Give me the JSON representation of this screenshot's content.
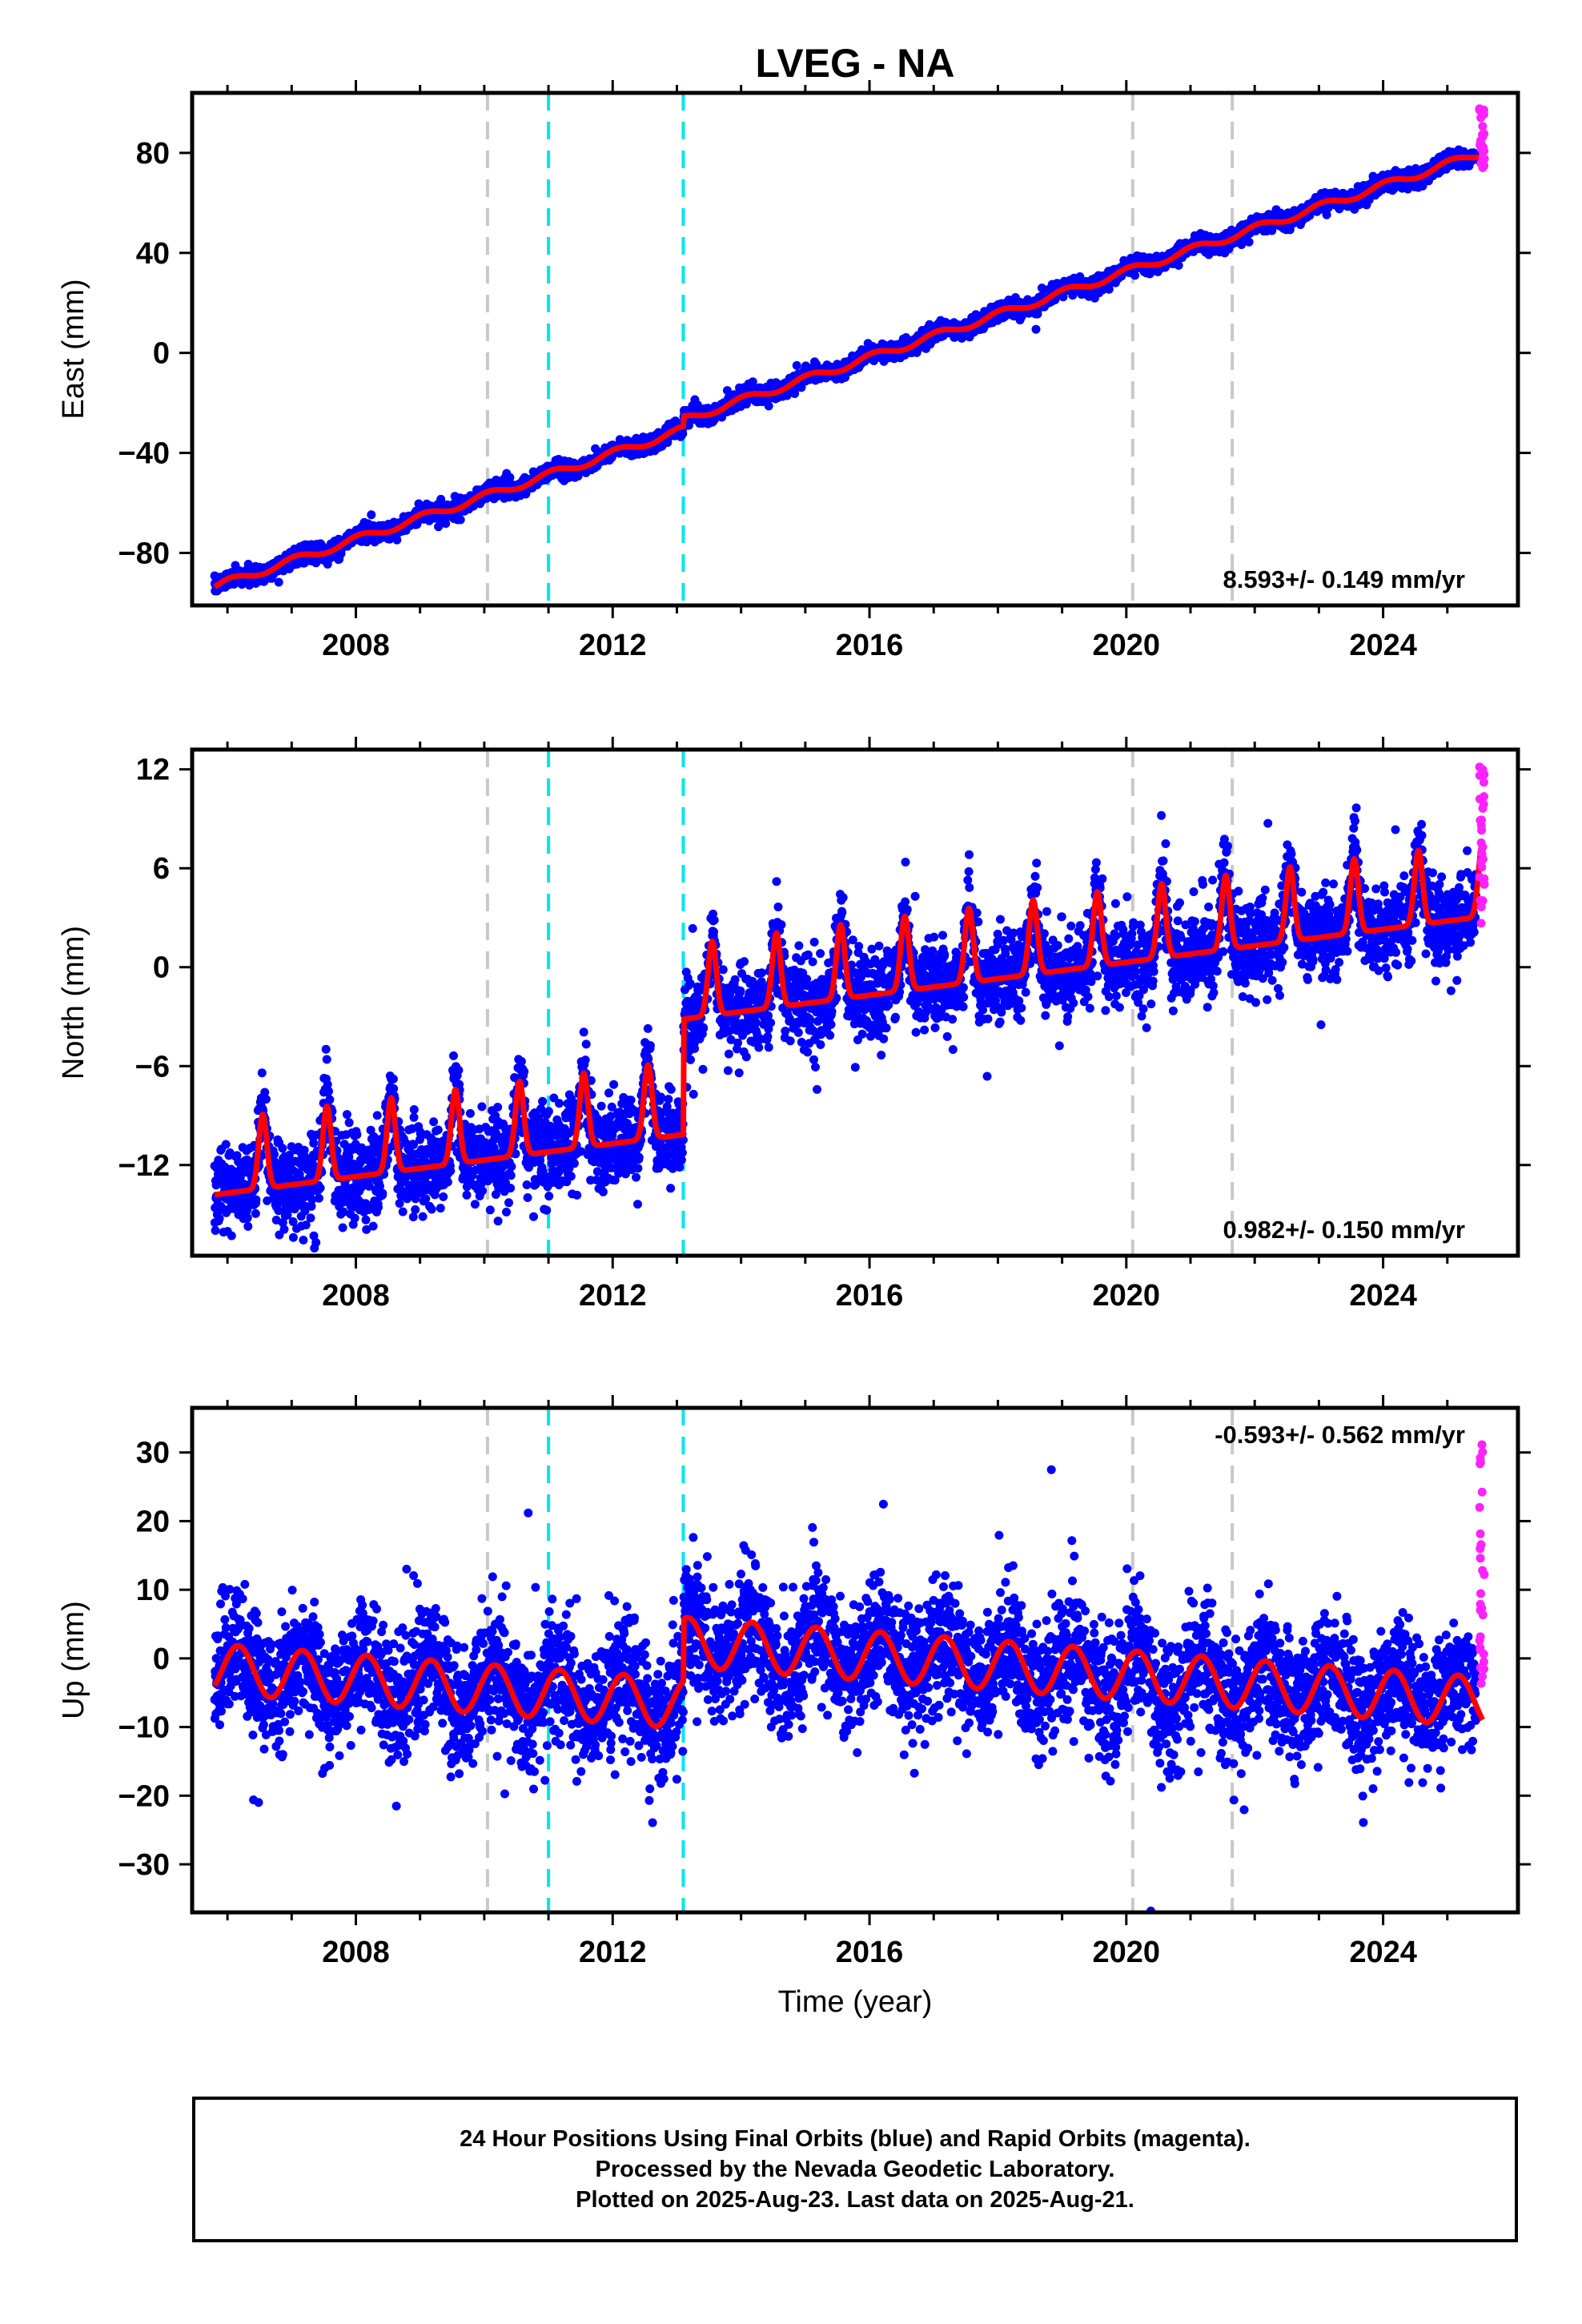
{
  "chart_data": {
    "title": "LVEG - NA",
    "type": "scatter",
    "x_label": "Time (year)",
    "x_range": [
      2005.45,
      2026.1
    ],
    "x_ticks": [
      2008,
      2012,
      2016,
      2020,
      2024
    ],
    "marker_colors": {
      "final": "#0000ff",
      "rapid": "#ff22ff",
      "model": "#ff0000"
    },
    "vertical_lines": [
      {
        "x": 2010.05,
        "color": "#c8c8c8"
      },
      {
        "x": 2011.0,
        "color": "#00e5ee"
      },
      {
        "x": 2013.1,
        "color": "#00e5ee"
      },
      {
        "x": 2020.1,
        "color": "#c8c8c8"
      },
      {
        "x": 2021.65,
        "color": "#c8c8c8"
      }
    ],
    "panels": [
      {
        "id": "east",
        "ylabel": "East (mm)",
        "ylim": [
          -101,
          104
        ],
        "yticks": [
          80,
          40,
          0,
          -40,
          -80
        ],
        "ytick_labels": [
          "80",
          "40",
          "0",
          "−40",
          "−80"
        ],
        "rate_text": "8.593+/- 0.149 mm/yr",
        "rate_position": "bottom-right",
        "model": {
          "type": "trend",
          "x0": 2005.8,
          "y0": -93.5,
          "rate": 8.593,
          "seasonal_amp": 1.5,
          "seasonal_phase": 1.2,
          "steps": [
            {
              "x": 2013.1,
              "dy": 4.0
            }
          ]
        },
        "scatter_sd": 1.6,
        "rapid_range": [
          74,
          98
        ]
      },
      {
        "id": "north",
        "ylabel": "North (mm)",
        "ylim": [
          -17.5,
          13.2
        ],
        "yticks": [
          12,
          6,
          0,
          -6,
          -12
        ],
        "ytick_labels": [
          "12",
          "6",
          "0",
          "−6",
          "−12"
        ],
        "rate_text": "0.982+/- 0.150 mm/yr",
        "rate_position": "bottom-right",
        "model": {
          "type": "seasonal",
          "x0": 2005.8,
          "y0": -13.8,
          "rate": 0.5,
          "seasonal_amp": 4.5,
          "steps": [
            {
              "x": 2013.1,
              "dy": 7.0
            }
          ]
        },
        "scatter_sd": 1.3,
        "rapid_range": [
          2.5,
          12.5
        ]
      },
      {
        "id": "up",
        "ylabel": "Up (mm)",
        "ylim": [
          -37,
          36.5
        ],
        "yticks": [
          30,
          20,
          10,
          0,
          -10,
          -20,
          -30
        ],
        "ytick_labels": [
          "30",
          "20",
          "10",
          "0",
          "−10",
          "−20",
          "−30"
        ],
        "rate_text": "-0.593+/- 0.562 mm/yr",
        "rate_position": "top-right",
        "model": {
          "type": "seasonal",
          "x0": 2005.8,
          "y0": -1.5,
          "rate": -0.7,
          "seasonal_amp": 3.6,
          "steps": [
            {
              "x": 2013.1,
              "dy": 9.0
            }
          ]
        },
        "scatter_sd": 4.5,
        "rapid_range": [
          -4,
          34
        ]
      }
    ]
  },
  "footer": {
    "line1": "24 Hour Positions Using Final Orbits (blue) and Rapid Orbits (magenta).",
    "line2": "Processed by the Nevada Geodetic Laboratory.",
    "line3": "Plotted on 2025-Aug-23. Last data on 2025-Aug-21."
  }
}
